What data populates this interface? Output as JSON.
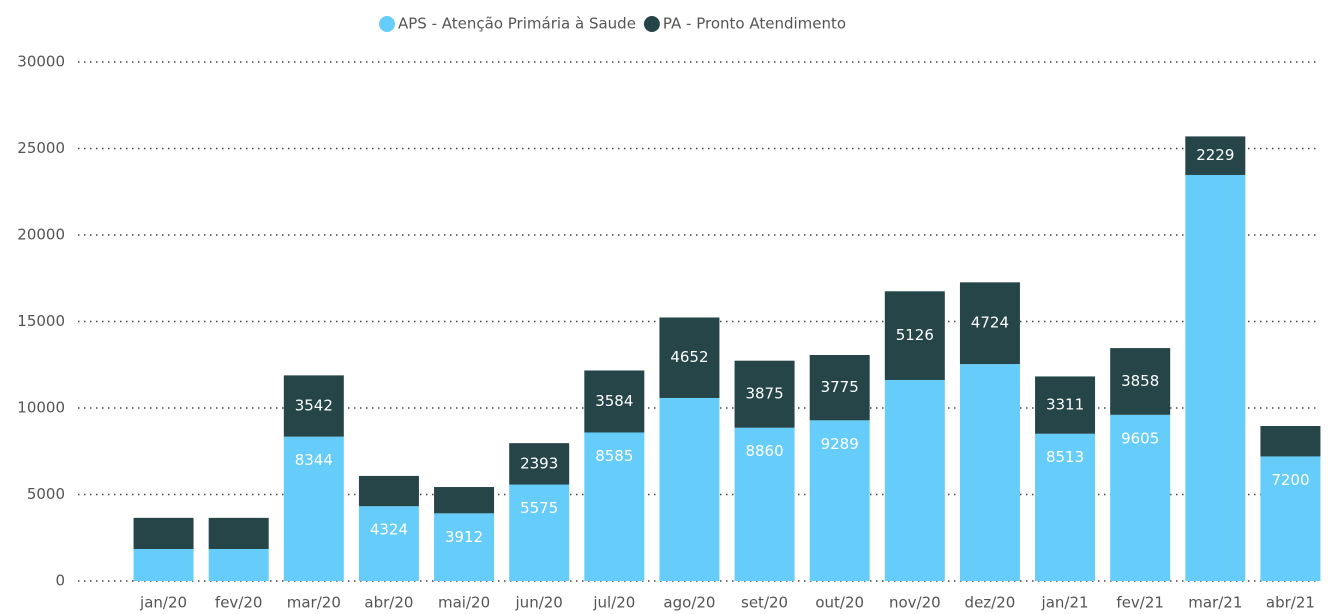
{
  "chart_data": {
    "type": "stacked_bar",
    "categories": [
      "jan/20",
      "fev/20",
      "mar/20",
      "abr/20",
      "mai/20",
      "jun/20",
      "jul/20",
      "ago/20",
      "set/20",
      "out/20",
      "nov/20",
      "dez/20",
      "jan/21",
      "fev/21",
      "mar/21",
      "abr/21"
    ],
    "series": [
      {
        "name": "APS - Atenção Primária à Saude",
        "color": "#66ccfa",
        "values": [
          1850,
          1850,
          8344,
          4324,
          3912,
          5575,
          8585,
          10580,
          8860,
          9289,
          11620,
          12540,
          8513,
          9605,
          23470,
          7200
        ],
        "value_labels": [
          null,
          null,
          "8344",
          "4324",
          "3912",
          "5575",
          "8585",
          null,
          "8860",
          "9289",
          null,
          null,
          "8513",
          "9605",
          null,
          "7200"
        ]
      },
      {
        "name": "PA - Pronto Atendimento",
        "color": "#254548",
        "values": [
          1800,
          1800,
          3542,
          1750,
          1520,
          2393,
          3584,
          4652,
          3875,
          3775,
          5126,
          4724,
          3311,
          3858,
          2229,
          1760
        ],
        "value_labels": [
          null,
          null,
          "3542",
          null,
          null,
          "2393",
          "3584",
          "4652",
          "3875",
          "3775",
          "5126",
          "4724",
          "3311",
          "3858",
          "2229",
          null
        ]
      }
    ],
    "ylim": [
      0,
      30000
    ],
    "yticks": [
      0,
      5000,
      10000,
      15000,
      20000,
      25000,
      30000
    ],
    "grid": true,
    "legend": "top"
  }
}
